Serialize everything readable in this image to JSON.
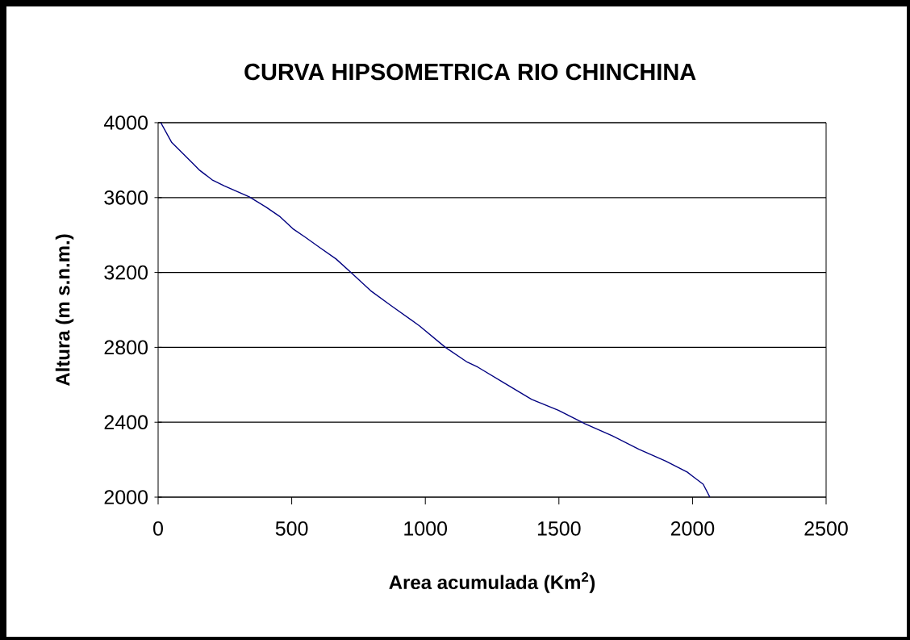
{
  "chart_data": {
    "type": "line",
    "title": "CURVA HIPSOMETRICA RIO CHINCHINA",
    "xlabel": "Area acumulada (Km$^{2}$)",
    "ylabel": "Altura (m s.n.m.)",
    "x": [
      10,
      51,
      133,
      156,
      202,
      248,
      341,
      404,
      457,
      504,
      550,
      605,
      666,
      723,
      795,
      870,
      978,
      1075,
      1157,
      1197,
      1297,
      1398,
      1498,
      1598,
      1699,
      1799,
      1900,
      1980,
      2000,
      2040,
      2065
    ],
    "series": [
      {
        "color": "#000080",
        "values": [
          4000,
          3894,
          3778,
          3745,
          3695,
          3662,
          3604,
          3549,
          3497,
          3434,
          3389,
          3333,
          3272,
          3198,
          3103,
          3025,
          2915,
          2800,
          2721,
          2694,
          2608,
          2522,
          2464,
          2392,
          2328,
          2256,
          2192,
          2134,
          2112,
          2069,
          2000
        ]
      }
    ],
    "xlim": [
      0,
      2500
    ],
    "ylim": [
      2000,
      4000
    ],
    "xticks": [
      0,
      500,
      1000,
      1500,
      2000,
      2500
    ],
    "yticks": [
      2000,
      2400,
      2800,
      3200,
      3600,
      4000
    ],
    "grid": "y",
    "line_style": "solid"
  }
}
